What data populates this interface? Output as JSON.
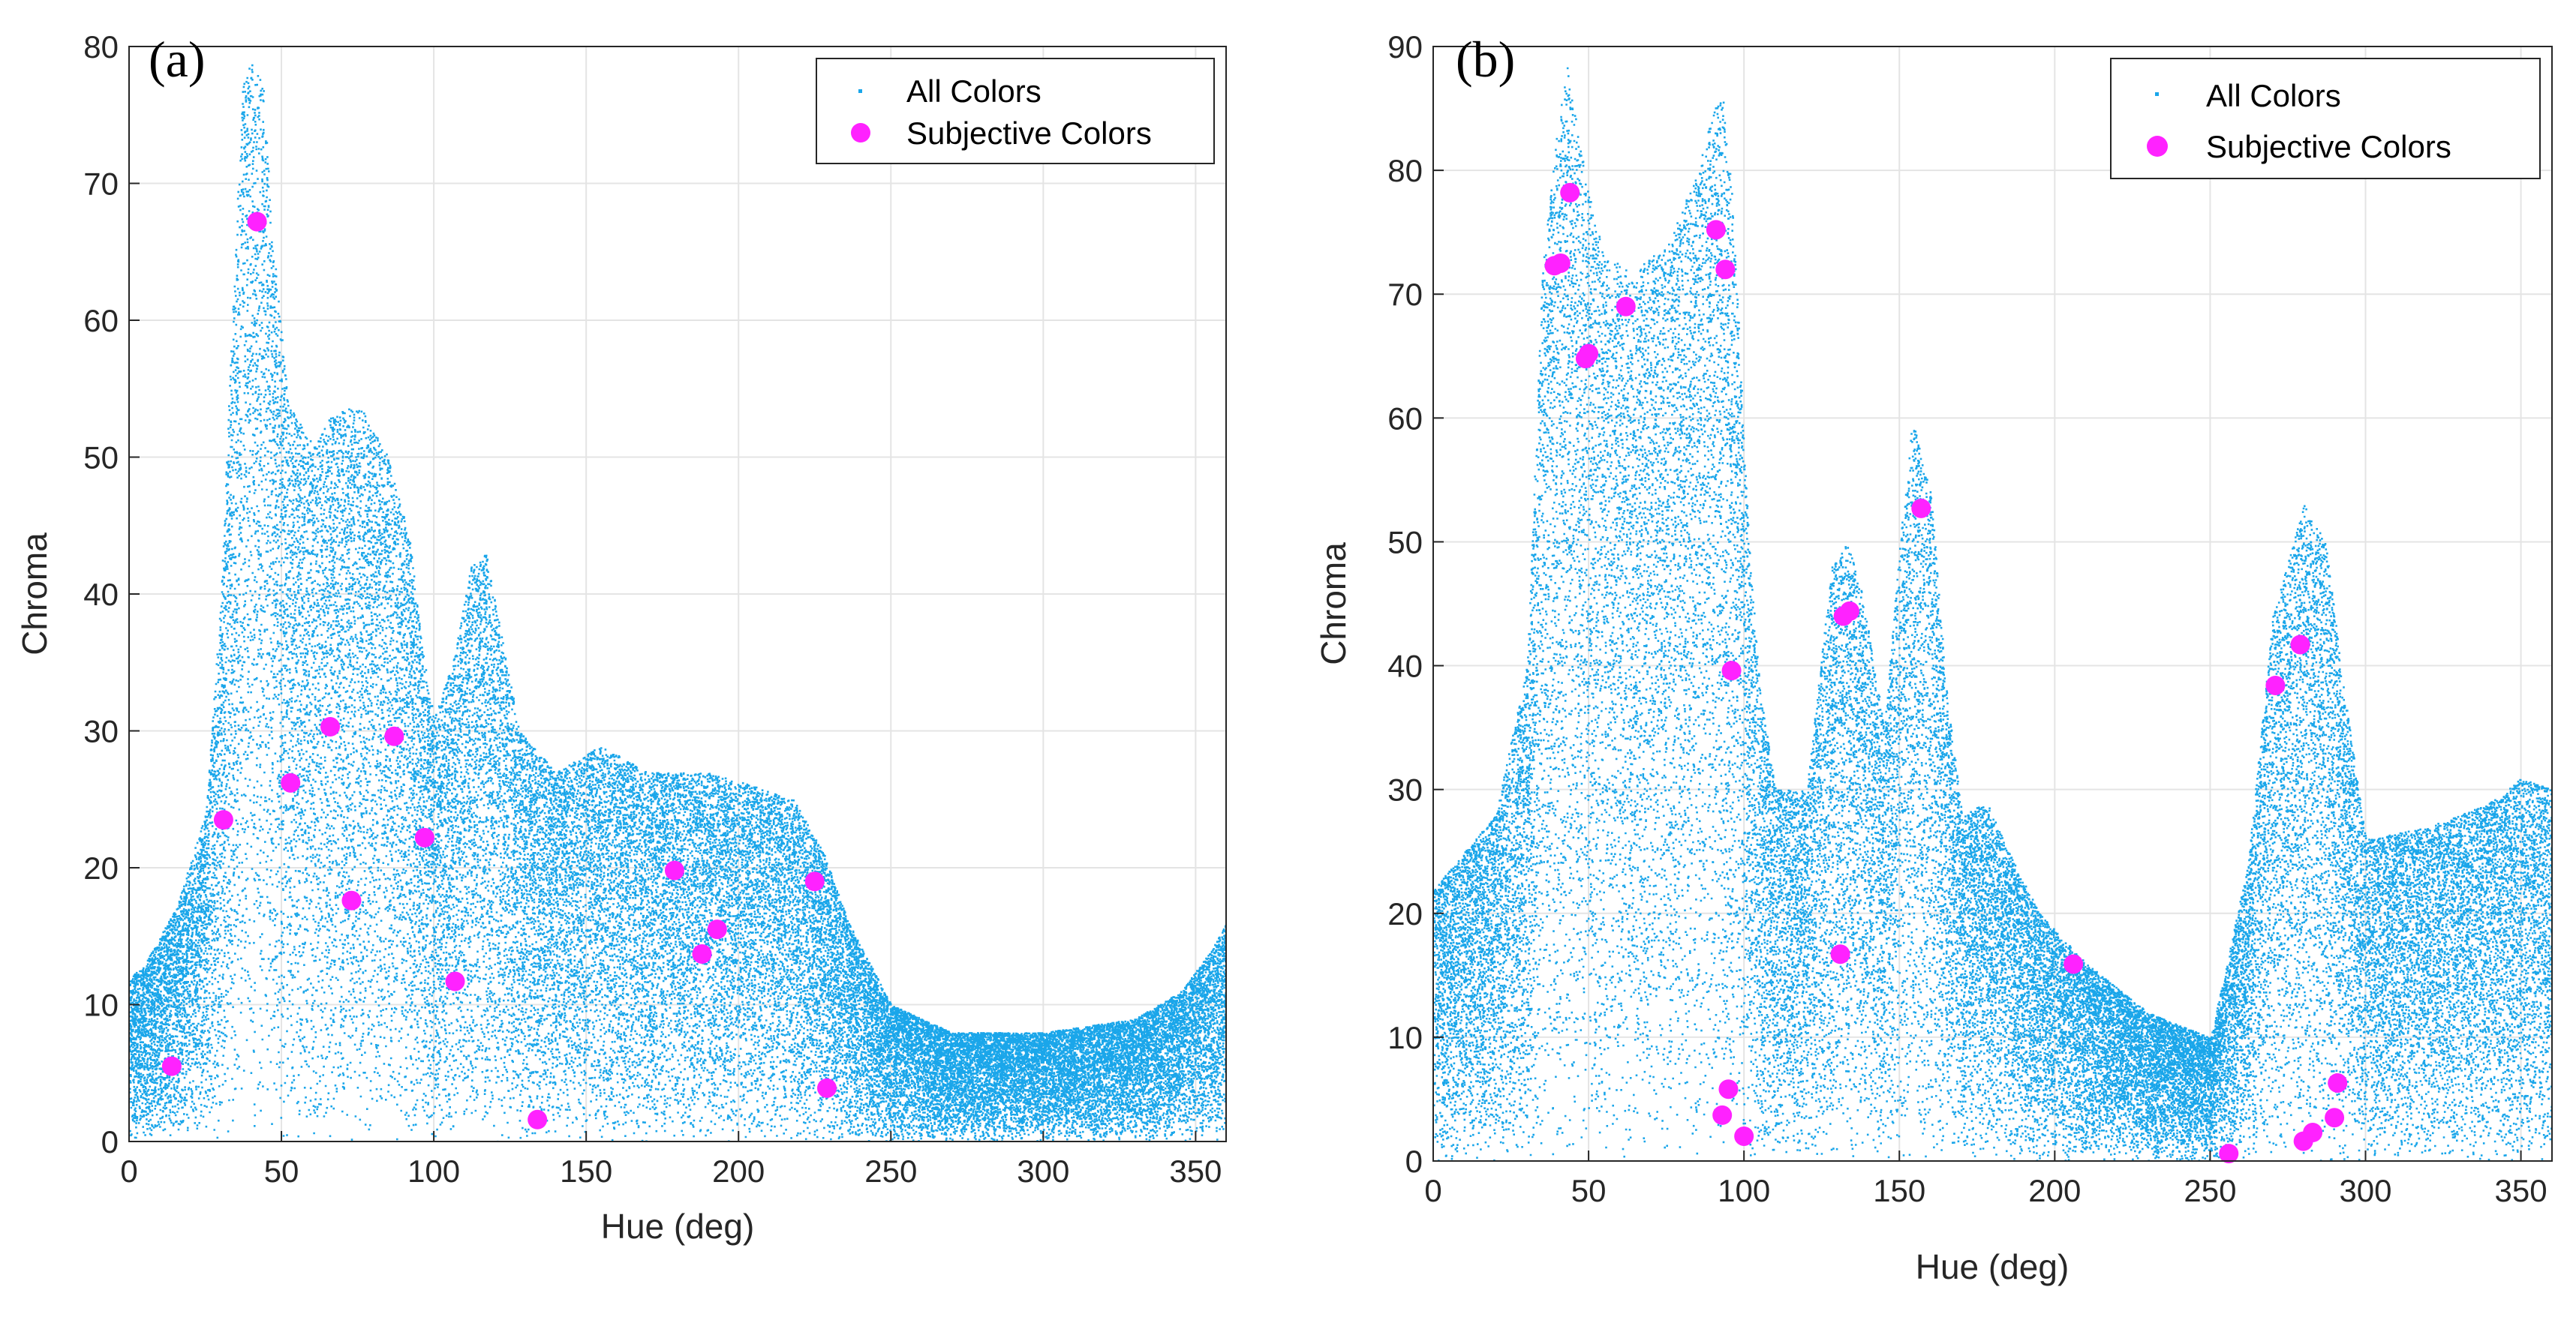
{
  "colors": {
    "all_colors": "#1aa6ea",
    "subjective_colors": "#ff22ff",
    "grid": "#e4e4e4",
    "axis": "#262626"
  },
  "chart_data": [
    {
      "type": "scatter",
      "panel_label": "(a)",
      "xlabel": "Hue (deg)",
      "ylabel": "Chroma",
      "xlim": [
        0,
        360
      ],
      "ylim": [
        0,
        80
      ],
      "xticks": [
        0,
        50,
        100,
        150,
        200,
        250,
        300,
        350
      ],
      "yticks": [
        0,
        10,
        20,
        30,
        40,
        50,
        60,
        70,
        80
      ],
      "grid": true,
      "legend_position": "top-right",
      "legend": [
        "All Colors",
        "Subjective Colors"
      ],
      "all_colors_envelope": [
        [
          0,
          12
        ],
        [
          5,
          13
        ],
        [
          15,
          17
        ],
        [
          25,
          24
        ],
        [
          30,
          40
        ],
        [
          34,
          62
        ],
        [
          37,
          77
        ],
        [
          40,
          79
        ],
        [
          44,
          77
        ],
        [
          47,
          66
        ],
        [
          52,
          54
        ],
        [
          60,
          51
        ],
        [
          66,
          53
        ],
        [
          75,
          54
        ],
        [
          85,
          50
        ],
        [
          92,
          44
        ],
        [
          96,
          36
        ],
        [
          100,
          31
        ],
        [
          106,
          35
        ],
        [
          112,
          42
        ],
        [
          117,
          43
        ],
        [
          122,
          37
        ],
        [
          128,
          30
        ],
        [
          140,
          27
        ],
        [
          155,
          29
        ],
        [
          170,
          27
        ],
        [
          190,
          27
        ],
        [
          205,
          26
        ],
        [
          218,
          25
        ],
        [
          228,
          21
        ],
        [
          236,
          16
        ],
        [
          250,
          10
        ],
        [
          270,
          8
        ],
        [
          300,
          8
        ],
        [
          330,
          9
        ],
        [
          345,
          11
        ],
        [
          355,
          14
        ],
        [
          360,
          16
        ]
      ],
      "series": [
        {
          "name": "Subjective Colors",
          "points": [
            [
              14,
              5.5
            ],
            [
              31,
              23.5
            ],
            [
              42,
              67.2
            ],
            [
              53,
              26.2
            ],
            [
              66,
              30.3
            ],
            [
              73,
              17.6
            ],
            [
              87,
              29.6
            ],
            [
              97,
              22.2
            ],
            [
              107,
              11.7
            ],
            [
              134,
              1.6
            ],
            [
              179,
              19.8
            ],
            [
              188,
              13.7
            ],
            [
              193,
              15.5
            ],
            [
              225,
              19.0
            ],
            [
              229,
              3.9
            ]
          ]
        }
      ]
    },
    {
      "type": "scatter",
      "panel_label": "(b)",
      "xlabel": "Hue (deg)",
      "ylabel": "Chroma",
      "xlim": [
        0,
        360
      ],
      "ylim": [
        0,
        90
      ],
      "xticks": [
        0,
        50,
        100,
        150,
        200,
        250,
        300,
        350
      ],
      "yticks": [
        0,
        10,
        20,
        30,
        40,
        50,
        60,
        70,
        80,
        90
      ],
      "grid": true,
      "legend_position": "top-right",
      "legend": [
        "All Colors",
        "Subjective Colors"
      ],
      "all_colors_envelope": [
        [
          0,
          22
        ],
        [
          10,
          25
        ],
        [
          20,
          28
        ],
        [
          30,
          40
        ],
        [
          35,
          72
        ],
        [
          40,
          84
        ],
        [
          43,
          89
        ],
        [
          47,
          82
        ],
        [
          55,
          73
        ],
        [
          65,
          72
        ],
        [
          75,
          74
        ],
        [
          85,
          80
        ],
        [
          90,
          85
        ],
        [
          93,
          86
        ],
        [
          96,
          78
        ],
        [
          98,
          68
        ],
        [
          102,
          48
        ],
        [
          105,
          38
        ],
        [
          110,
          30
        ],
        [
          120,
          30
        ],
        [
          128,
          48
        ],
        [
          133,
          50
        ],
        [
          138,
          46
        ],
        [
          145,
          35
        ],
        [
          150,
          50
        ],
        [
          154,
          60
        ],
        [
          160,
          54
        ],
        [
          165,
          38
        ],
        [
          170,
          28
        ],
        [
          178,
          29
        ],
        [
          185,
          25
        ],
        [
          195,
          20
        ],
        [
          210,
          16
        ],
        [
          230,
          12
        ],
        [
          250,
          10
        ],
        [
          262,
          24
        ],
        [
          270,
          44
        ],
        [
          280,
          53
        ],
        [
          287,
          50
        ],
        [
          293,
          38
        ],
        [
          300,
          26
        ],
        [
          320,
          27
        ],
        [
          340,
          29
        ],
        [
          350,
          31
        ],
        [
          360,
          30
        ]
      ],
      "series": [
        {
          "name": "Subjective Colors",
          "points": [
            [
              39,
              72.3
            ],
            [
              41,
              72.5
            ],
            [
              44,
              78.2
            ],
            [
              49,
              64.8
            ],
            [
              50,
              65.2
            ],
            [
              62,
              69.0
            ],
            [
              91,
              75.2
            ],
            [
              93,
              3.7
            ],
            [
              94,
              72.0
            ],
            [
              95,
              5.8
            ],
            [
              96,
              39.6
            ],
            [
              100,
              2.0
            ],
            [
              131,
              16.7
            ],
            [
              132,
              44.0
            ],
            [
              134,
              44.4
            ],
            [
              157,
              52.7
            ],
            [
              206,
              15.9
            ],
            [
              256,
              0.6
            ],
            [
              271,
              38.4
            ],
            [
              279,
              41.7
            ],
            [
              280,
              1.6
            ],
            [
              283,
              2.3
            ],
            [
              290,
              3.5
            ],
            [
              291,
              6.3
            ]
          ]
        }
      ]
    }
  ]
}
